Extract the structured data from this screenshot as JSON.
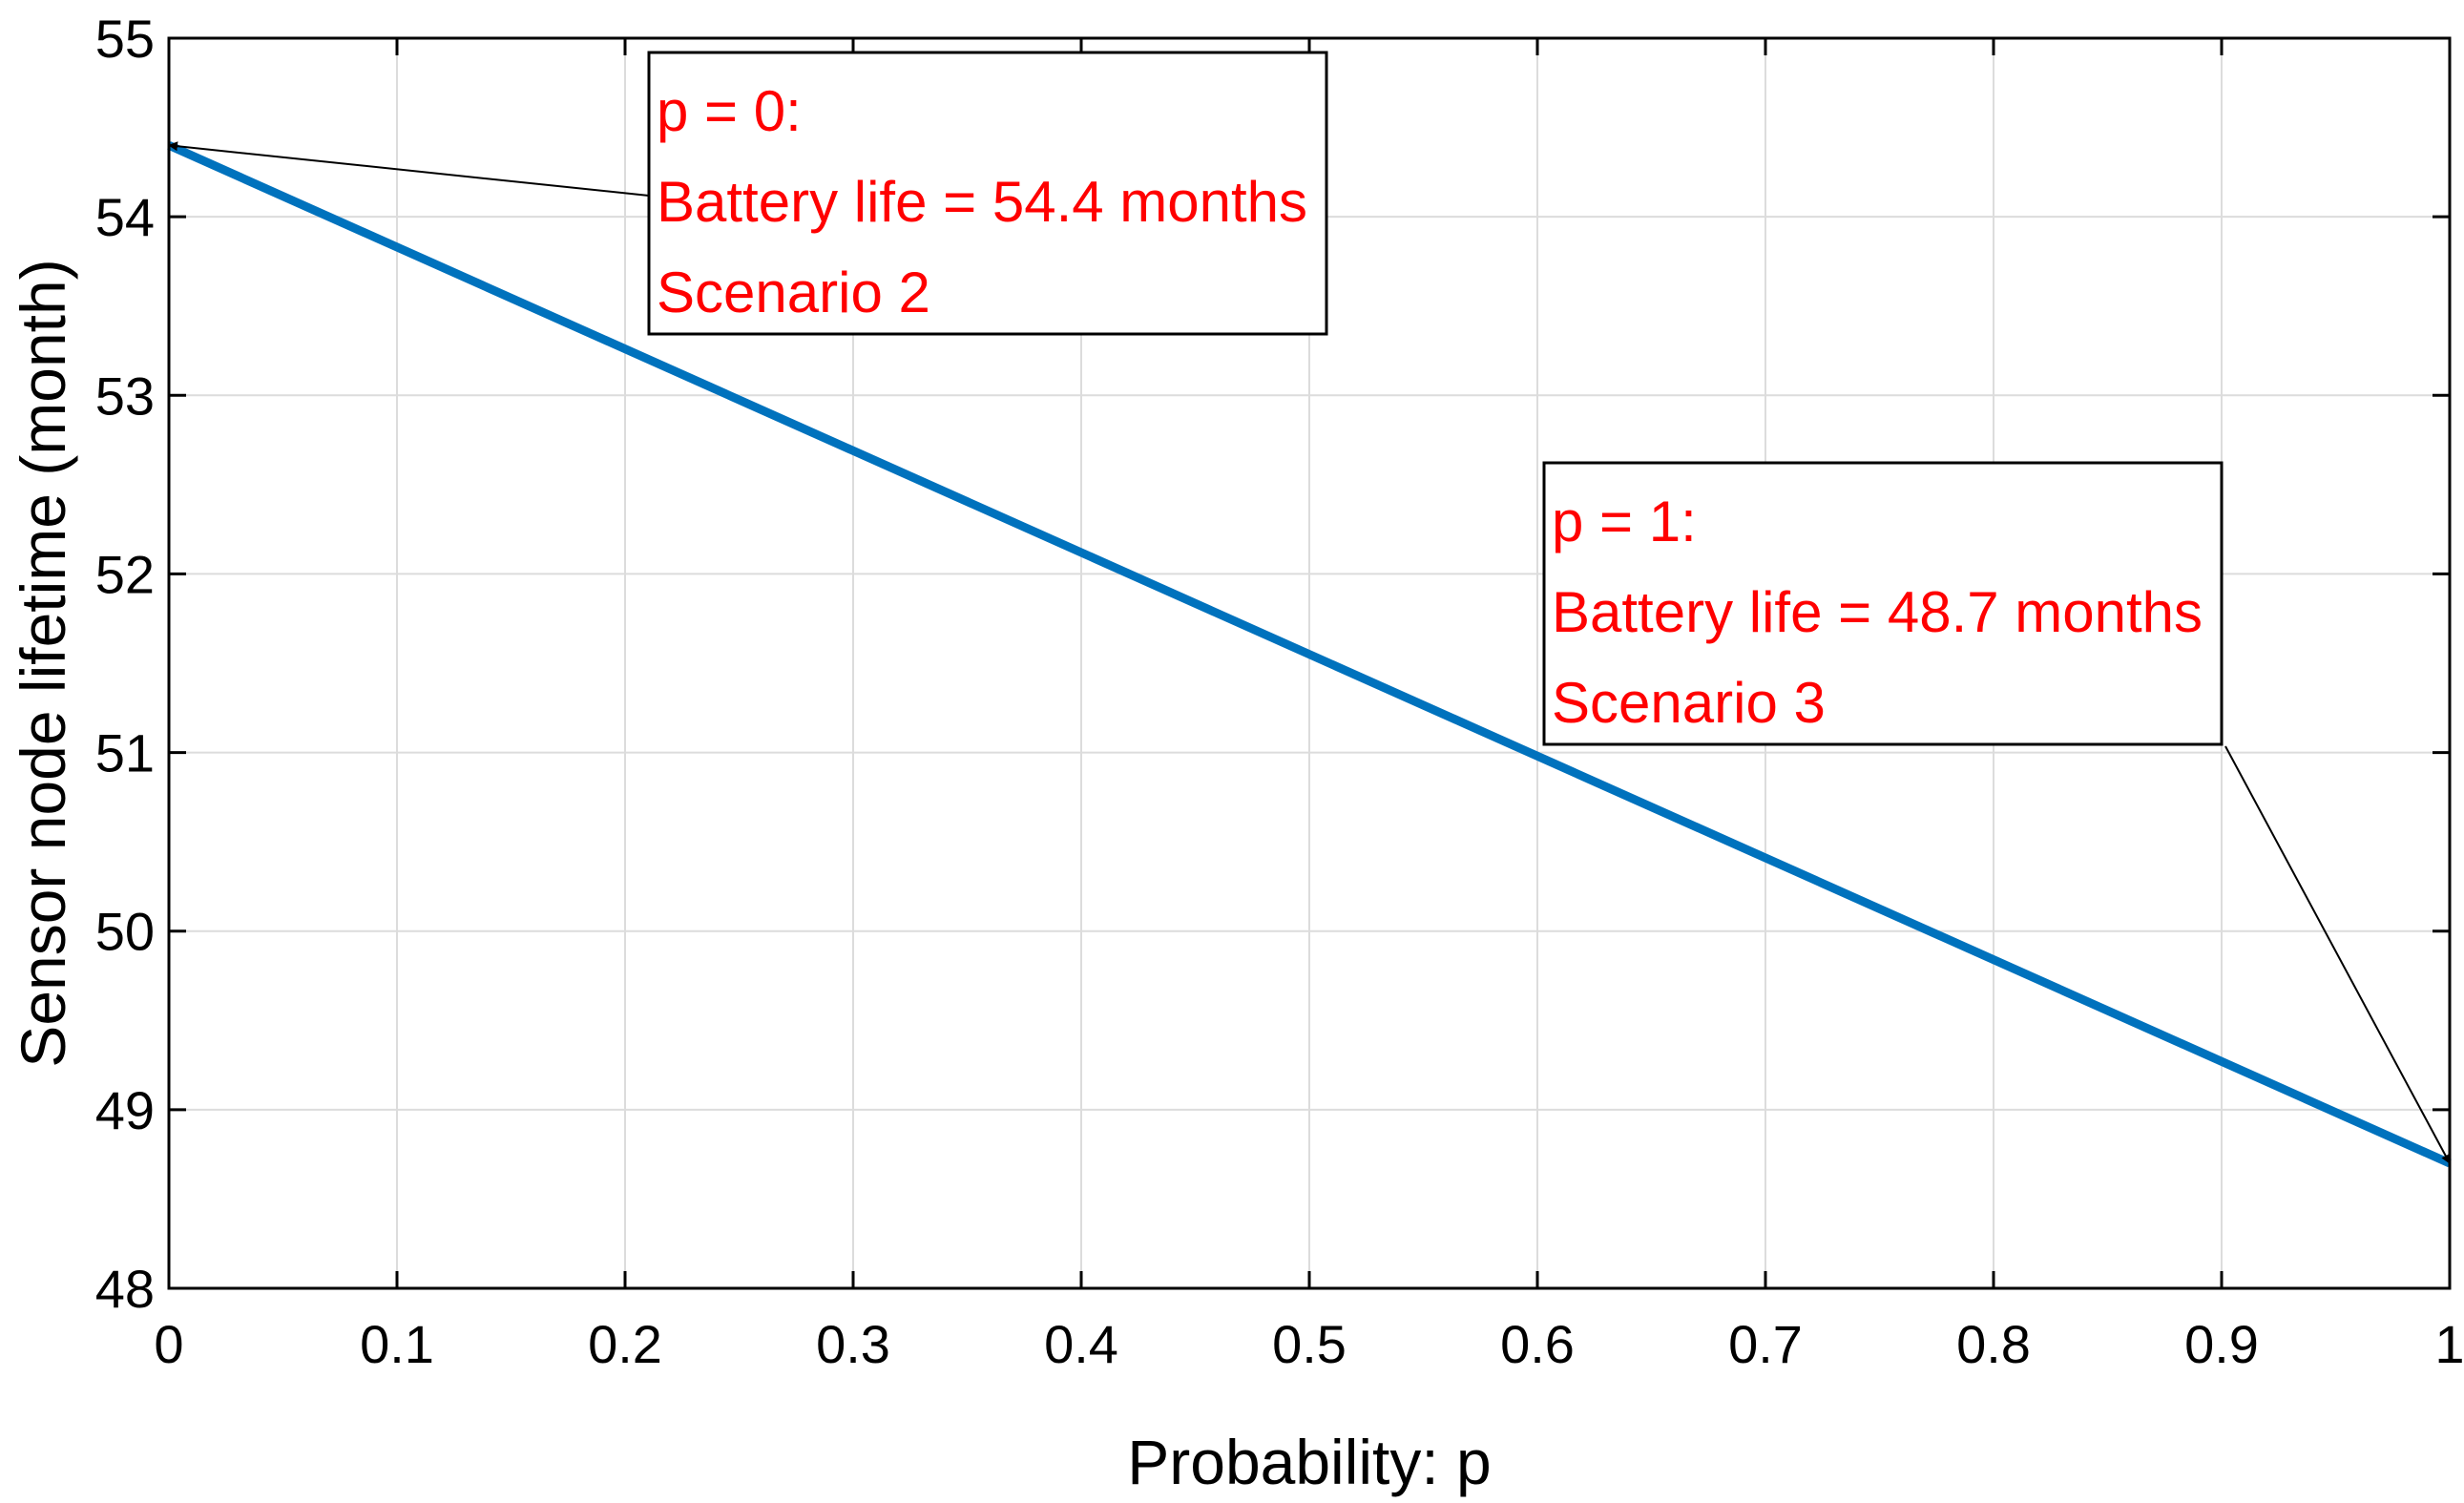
{
  "chart_data": {
    "type": "line",
    "title": "",
    "xlabel": "Probability: p",
    "ylabel": "Sensor node lifetime (month)",
    "xlim": [
      0,
      1
    ],
    "ylim": [
      48,
      55
    ],
    "grid": true,
    "x_ticks": [
      "0",
      "0.1",
      "0.2",
      "0.3",
      "0.4",
      "0.5",
      "0.6",
      "0.7",
      "0.8",
      "0.9",
      "1"
    ],
    "y_ticks": [
      "48",
      "49",
      "50",
      "51",
      "52",
      "53",
      "54",
      "55"
    ],
    "series": [
      {
        "name": "Sensor node lifetime",
        "color": "#0072BD",
        "x": [
          0,
          1
        ],
        "y": [
          54.4,
          48.7
        ]
      }
    ],
    "annotations": [
      {
        "lines": [
          "p = 0:",
          "Battery life = 54.4 months",
          "Scenario 2"
        ],
        "target": [
          0,
          54.4
        ],
        "color": "#FF0000"
      },
      {
        "lines": [
          "p = 1:",
          "Battery life = 48.7 months",
          "Scenario 3"
        ],
        "target": [
          1,
          48.7
        ],
        "color": "#FF0000"
      }
    ]
  }
}
